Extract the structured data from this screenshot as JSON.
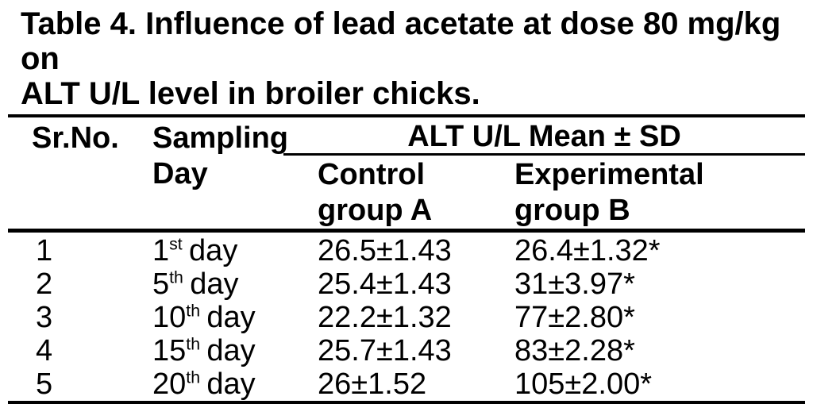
{
  "title_lines": [
    "Table 4. Influence of lead acetate at dose 80 mg/kg on",
    "ALT U/L level in broiler chicks."
  ],
  "table": {
    "headers": {
      "sr_no": "Sr.No.",
      "sampling_line1": "Sampling",
      "sampling_line2": "Day",
      "span_header": "ALT U/L Mean ± SD",
      "control_line1": "Control",
      "control_line2": "group A",
      "experimental_line1": "Experimental",
      "experimental_line2": "group B"
    },
    "rows": [
      {
        "sr": "1",
        "day_num": "1",
        "day_suffix": "st",
        "day_word": "day",
        "control": "26.5±1.43",
        "experimental": "26.4±1.32*"
      },
      {
        "sr": "2",
        "day_num": "5",
        "day_suffix": "th",
        "day_word": "day",
        "control": "25.4±1.43",
        "experimental": "31±3.97*"
      },
      {
        "sr": "3",
        "day_num": "10",
        "day_suffix": "th",
        "day_word": "day",
        "control": "22.2±1.32",
        "experimental": "77±2.80*"
      },
      {
        "sr": "4",
        "day_num": "15",
        "day_suffix": "th",
        "day_word": "day",
        "control": "25.7±1.43",
        "experimental": "83±2.28*"
      },
      {
        "sr": "5",
        "day_num": "20",
        "day_suffix": "th",
        "day_word": "day",
        "control": "26±1.52",
        "experimental": "105±2.00*"
      }
    ]
  },
  "colors": {
    "text": "#000000",
    "background": "#ffffff",
    "rule": "#000000"
  },
  "chart_data": {
    "type": "table",
    "title": "Table 4. Influence of lead acetate at dose 80 mg/kg on ALT U/L level in broiler chicks.",
    "columns": [
      "Sr.No.",
      "Sampling Day",
      "ALT U/L Mean ± SD — Control group A",
      "ALT U/L Mean ± SD — Experimental group B"
    ],
    "rows": [
      [
        "1",
        "1st day",
        "26.5±1.43",
        "26.4±1.32*"
      ],
      [
        "2",
        "5th day",
        "25.4±1.43",
        "31±3.97*"
      ],
      [
        "3",
        "10th day",
        "22.2±1.32",
        "77±2.80*"
      ],
      [
        "4",
        "15th day",
        "25.7±1.43",
        "83±2.28*"
      ],
      [
        "5",
        "20th day",
        "26±1.52",
        "105±2.00*"
      ]
    ]
  }
}
